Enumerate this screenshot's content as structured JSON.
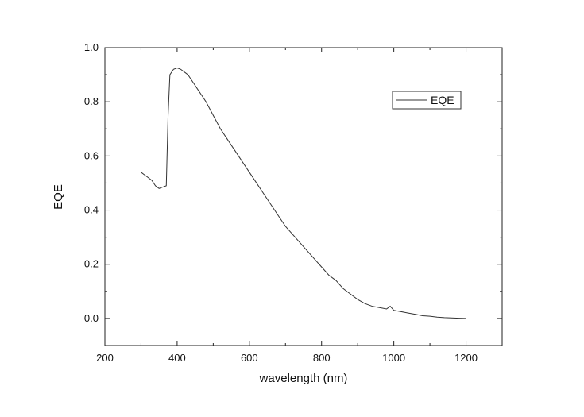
{
  "chart_data": {
    "type": "line",
    "xlabel": "wavelength (nm)",
    "ylabel": "EQE",
    "xlim": [
      200,
      1300
    ],
    "ylim": [
      -0.1,
      1.0
    ],
    "xticks": [
      200,
      400,
      600,
      800,
      1000,
      1200
    ],
    "yticks": [
      0.0,
      0.2,
      0.4,
      0.6,
      0.8,
      1.0
    ],
    "xtick_labels": [
      "200",
      "400",
      "600",
      "800",
      "1000",
      "1200"
    ],
    "ytick_labels": [
      "0.0",
      "0.2",
      "0.4",
      "0.6",
      "0.8",
      "1.0"
    ],
    "grid": false,
    "legend_position": "top-right",
    "series": [
      {
        "name": "EQE",
        "color": "#333333",
        "x": [
          300,
          310,
          320,
          330,
          340,
          350,
          360,
          370,
          375,
          380,
          390,
          400,
          410,
          420,
          430,
          440,
          460,
          480,
          500,
          520,
          540,
          560,
          580,
          600,
          620,
          640,
          660,
          680,
          700,
          720,
          740,
          760,
          780,
          800,
          820,
          840,
          860,
          880,
          900,
          920,
          940,
          960,
          980,
          990,
          1000,
          1020,
          1040,
          1060,
          1080,
          1100,
          1120,
          1140,
          1160,
          1180,
          1200
        ],
        "y": [
          0.54,
          0.53,
          0.52,
          0.51,
          0.49,
          0.48,
          0.485,
          0.49,
          0.75,
          0.9,
          0.92,
          0.925,
          0.92,
          0.91,
          0.9,
          0.88,
          0.84,
          0.8,
          0.75,
          0.7,
          0.66,
          0.62,
          0.58,
          0.54,
          0.5,
          0.46,
          0.42,
          0.38,
          0.34,
          0.31,
          0.28,
          0.25,
          0.22,
          0.19,
          0.16,
          0.14,
          0.11,
          0.09,
          0.07,
          0.055,
          0.045,
          0.04,
          0.035,
          0.045,
          0.03,
          0.025,
          0.02,
          0.015,
          0.01,
          0.008,
          0.005,
          0.003,
          0.002,
          0.001,
          0.0
        ]
      }
    ]
  }
}
